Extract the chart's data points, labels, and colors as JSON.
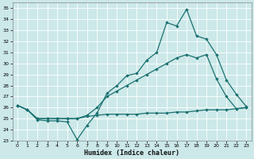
{
  "xlabel": "Humidex (Indice chaleur)",
  "bg_color": "#cce8e8",
  "grid_color": "#b8d8d8",
  "line_color": "#1a7070",
  "xlim": [
    -0.5,
    23.5
  ],
  "ylim": [
    23,
    35.5
  ],
  "yticks": [
    23,
    24,
    25,
    26,
    27,
    28,
    29,
    30,
    31,
    32,
    33,
    34,
    35
  ],
  "xticks": [
    0,
    1,
    2,
    3,
    4,
    5,
    6,
    7,
    8,
    9,
    10,
    11,
    12,
    13,
    14,
    15,
    16,
    17,
    18,
    19,
    20,
    21,
    22,
    23
  ],
  "line1_x": [
    0,
    1,
    2,
    3,
    4,
    5,
    6,
    7,
    8,
    9,
    10,
    11,
    12,
    13,
    14,
    15,
    16,
    17,
    18,
    19,
    20,
    21,
    22,
    23
  ],
  "line1_y": [
    26.2,
    25.8,
    24.9,
    24.8,
    24.8,
    24.7,
    23.1,
    24.4,
    25.5,
    27.3,
    28.0,
    28.9,
    29.1,
    30.3,
    31.0,
    33.7,
    33.4,
    34.9,
    32.5,
    32.2,
    30.8,
    28.5,
    27.2,
    26.1
  ],
  "line2_x": [
    0,
    1,
    2,
    3,
    4,
    5,
    6,
    7,
    8,
    9,
    10,
    11,
    12,
    13,
    14,
    15,
    16,
    17,
    18,
    19,
    20,
    21,
    22,
    23
  ],
  "line2_y": [
    26.2,
    25.8,
    25.0,
    25.0,
    25.0,
    25.0,
    25.0,
    25.3,
    26.0,
    27.0,
    27.5,
    28.0,
    28.5,
    29.0,
    29.5,
    30.0,
    30.5,
    30.8,
    30.5,
    30.8,
    28.6,
    27.0,
    25.9,
    26.0
  ],
  "line3_x": [
    0,
    1,
    2,
    3,
    4,
    5,
    6,
    7,
    8,
    9,
    10,
    11,
    12,
    13,
    14,
    15,
    16,
    17,
    18,
    19,
    20,
    21,
    22,
    23
  ],
  "line3_y": [
    26.2,
    25.8,
    25.0,
    25.0,
    25.0,
    25.0,
    25.0,
    25.2,
    25.3,
    25.4,
    25.4,
    25.4,
    25.4,
    25.5,
    25.5,
    25.5,
    25.6,
    25.6,
    25.7,
    25.8,
    25.8,
    25.8,
    25.9,
    26.0
  ]
}
